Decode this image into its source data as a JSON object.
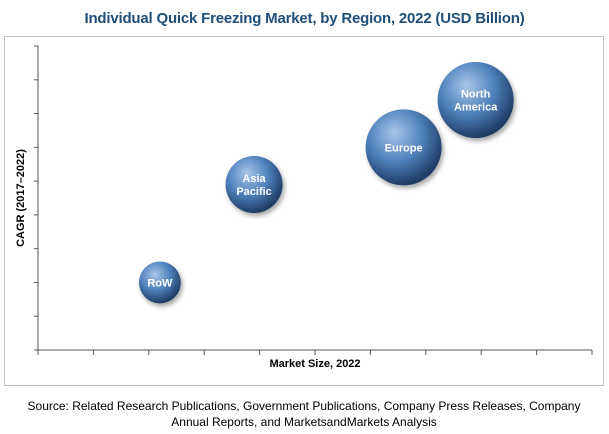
{
  "title": "Individual Quick Freezing Market, by Region, 2022 (USD Billion)",
  "source": "Source: Related Research Publications, Government Publications, Company Press Releases, Company Annual Reports, and MarketsandMarkets Analysis",
  "colors": {
    "title": "#1f4e79",
    "bubble_light": "#a9c6e8",
    "bubble_mid": "#4f81bd",
    "bubble_dark": "#1f3c63",
    "axis": "#555555"
  },
  "chart_data": {
    "type": "scatter",
    "subtype": "bubble",
    "title": "Individual Quick Freezing Market, by Region, 2022 (USD Billion)",
    "xlabel": "Market Size, 2022",
    "ylabel": "CAGR (2017–2022)",
    "xlim": [
      0,
      10
    ],
    "ylim": [
      0,
      9
    ],
    "x_tick_count": 11,
    "y_tick_count": 10,
    "grid": false,
    "legend": "none",
    "axis_values_shown": false,
    "points": [
      {
        "label_lines": [
          "RoW"
        ],
        "x": 2.2,
        "y": 2.0,
        "size": 0.55
      },
      {
        "label_lines": [
          "Asia",
          "Pacific"
        ],
        "x": 3.9,
        "y": 4.9,
        "size": 0.75
      },
      {
        "label_lines": [
          "Europe"
        ],
        "x": 6.6,
        "y": 6.0,
        "size": 1.0
      },
      {
        "label_lines": [
          "North",
          "America"
        ],
        "x": 7.9,
        "y": 7.4,
        "size": 1.0
      }
    ]
  }
}
